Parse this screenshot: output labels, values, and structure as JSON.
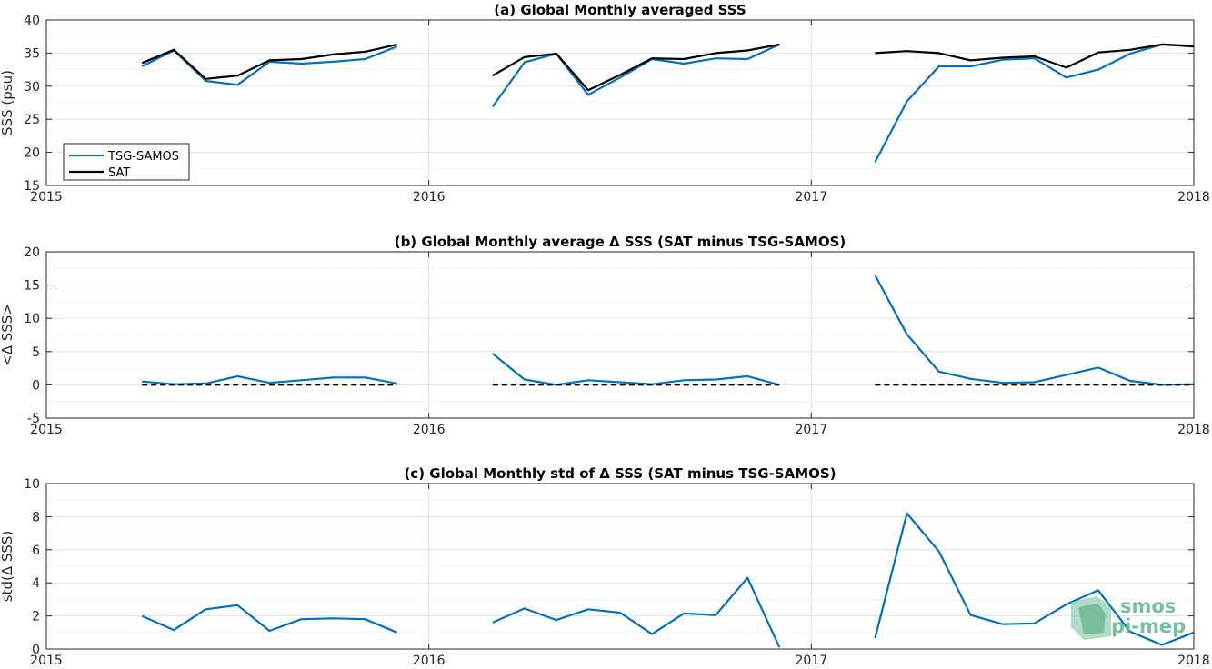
{
  "chart_data": [
    {
      "type": "line",
      "title": "(a) Global Monthly averaged SSS",
      "xlabel": "",
      "ylabel": "SSS (psu)",
      "xlim": [
        2015,
        2018
      ],
      "ylim": [
        15,
        40
      ],
      "xticks": [
        "2015",
        "2016",
        "2017",
        "2018"
      ],
      "yticks": [
        15,
        20,
        25,
        30,
        35,
        40
      ],
      "grid": true,
      "legend": "bottom-left",
      "series": [
        {
          "name": "TSG-SAMOS",
          "color": "#0072bd",
          "segments": [
            {
              "x": [
                "2015-04",
                "2015-05",
                "2015-06",
                "2015-07",
                "2015-08",
                "2015-09",
                "2015-10",
                "2015-11",
                "2015-12"
              ],
              "y": [
                33.0,
                35.4,
                30.8,
                30.2,
                33.7,
                33.4,
                33.7,
                34.1,
                36.0
              ]
            },
            {
              "x": [
                "2016-03",
                "2016-04",
                "2016-05",
                "2016-06",
                "2016-07",
                "2016-08",
                "2016-09",
                "2016-10",
                "2016-11",
                "2016-12"
              ],
              "y": [
                26.9,
                33.6,
                34.9,
                28.7,
                31.3,
                34.1,
                33.4,
                34.2,
                34.1,
                36.3
              ]
            },
            {
              "x": [
                "2017-03",
                "2017-04",
                "2017-05",
                "2017-06",
                "2017-07",
                "2017-08",
                "2017-09",
                "2017-10",
                "2017-11",
                "2017-12",
                "2018-01"
              ],
              "y": [
                18.5,
                27.7,
                33.0,
                33.0,
                34.0,
                34.2,
                31.3,
                32.5,
                34.9,
                36.3,
                36.1
              ]
            }
          ]
        },
        {
          "name": "SAT",
          "color": "#000000",
          "segments": [
            {
              "x": [
                "2015-04",
                "2015-05",
                "2015-06",
                "2015-07",
                "2015-08",
                "2015-09",
                "2015-10",
                "2015-11",
                "2015-12"
              ],
              "y": [
                33.5,
                35.5,
                31.1,
                31.6,
                33.9,
                34.1,
                34.8,
                35.2,
                36.3
              ]
            },
            {
              "x": [
                "2016-03",
                "2016-04",
                "2016-05",
                "2016-06",
                "2016-07",
                "2016-08",
                "2016-09",
                "2016-10",
                "2016-11",
                "2016-12"
              ],
              "y": [
                31.6,
                34.4,
                34.9,
                29.4,
                31.7,
                34.2,
                34.1,
                35.0,
                35.4,
                36.3
              ]
            },
            {
              "x": [
                "2017-03",
                "2017-04",
                "2017-05",
                "2017-06",
                "2017-07",
                "2017-08",
                "2017-09",
                "2017-10",
                "2017-11",
                "2017-12",
                "2018-01"
              ],
              "y": [
                35.0,
                35.3,
                35.0,
                33.9,
                34.3,
                34.5,
                32.8,
                35.1,
                35.5,
                36.3,
                36.0
              ]
            }
          ]
        }
      ]
    },
    {
      "type": "line",
      "title": "(b) Global Monthly average Δ SSS (SAT minus TSG-SAMOS)",
      "xlabel": "",
      "ylabel": "<Δ SSS>",
      "xlim": [
        2015,
        2018
      ],
      "ylim": [
        -5,
        20
      ],
      "xticks": [
        "2015",
        "2016",
        "2017",
        "2018"
      ],
      "yticks": [
        -5,
        0,
        5,
        10,
        15,
        20
      ],
      "grid": true,
      "series": [
        {
          "name": "",
          "color": "#0072bd",
          "segments": [
            {
              "x": [
                "2015-04",
                "2015-05",
                "2015-06",
                "2015-07",
                "2015-08",
                "2015-09",
                "2015-10",
                "2015-11",
                "2015-12"
              ],
              "y": [
                0.5,
                0.1,
                0.2,
                1.3,
                0.3,
                0.7,
                1.1,
                1.1,
                0.2
              ]
            },
            {
              "x": [
                "2016-03",
                "2016-04",
                "2016-05",
                "2016-06",
                "2016-07",
                "2016-08",
                "2016-09",
                "2016-10",
                "2016-11",
                "2016-12"
              ],
              "y": [
                4.7,
                0.8,
                0.0,
                0.7,
                0.4,
                0.1,
                0.7,
                0.8,
                1.3,
                0.0
              ]
            },
            {
              "x": [
                "2017-03",
                "2017-04",
                "2017-05",
                "2017-06",
                "2017-07",
                "2017-08",
                "2017-09",
                "2017-10",
                "2017-11",
                "2017-12",
                "2018-01"
              ],
              "y": [
                16.5,
                7.6,
                2.0,
                0.9,
                0.3,
                0.4,
                1.5,
                2.6,
                0.6,
                0.0,
                0.1
              ]
            }
          ]
        },
        {
          "name": "",
          "color": "#000000",
          "dashed": true,
          "segments": [
            {
              "x": [
                "2015-04",
                "2015-12"
              ],
              "y": [
                0,
                0
              ]
            },
            {
              "x": [
                "2016-03",
                "2016-12"
              ],
              "y": [
                0,
                0
              ]
            },
            {
              "x": [
                "2017-03",
                "2018-01"
              ],
              "y": [
                0,
                0
              ]
            }
          ]
        }
      ]
    },
    {
      "type": "line",
      "title": "(c) Global Monthly std of Δ SSS (SAT minus TSG-SAMOS)",
      "xlabel": "",
      "ylabel": "std(Δ SSS)",
      "xlim": [
        2015,
        2018
      ],
      "ylim": [
        0,
        10
      ],
      "xticks": [
        "2015",
        "2016",
        "2017",
        "2018"
      ],
      "yticks": [
        0,
        2,
        4,
        6,
        8,
        10
      ],
      "grid": true,
      "series": [
        {
          "name": "",
          "color": "#0072bd",
          "segments": [
            {
              "x": [
                "2015-04",
                "2015-05",
                "2015-06",
                "2015-07",
                "2015-08",
                "2015-09",
                "2015-10",
                "2015-11",
                "2015-12"
              ],
              "y": [
                2.0,
                1.15,
                2.4,
                2.65,
                1.1,
                1.8,
                1.85,
                1.8,
                1.0
              ]
            },
            {
              "x": [
                "2016-03",
                "2016-04",
                "2016-05",
                "2016-06",
                "2016-07",
                "2016-08",
                "2016-09",
                "2016-10",
                "2016-11",
                "2016-12"
              ],
              "y": [
                1.6,
                2.45,
                1.75,
                2.4,
                2.2,
                0.9,
                2.15,
                2.05,
                4.3,
                0.1
              ]
            },
            {
              "x": [
                "2017-03",
                "2017-04",
                "2017-05",
                "2017-06",
                "2017-07",
                "2017-08",
                "2017-09",
                "2017-10",
                "2017-11",
                "2017-12",
                "2018-01"
              ],
              "y": [
                0.65,
                8.2,
                5.9,
                2.05,
                1.5,
                1.55,
                2.7,
                3.55,
                1.05,
                0.25,
                1.0
              ]
            }
          ]
        }
      ]
    }
  ],
  "watermark": {
    "line1": "smos",
    "line2": "pi-mep",
    "color": "#5fb48a"
  }
}
